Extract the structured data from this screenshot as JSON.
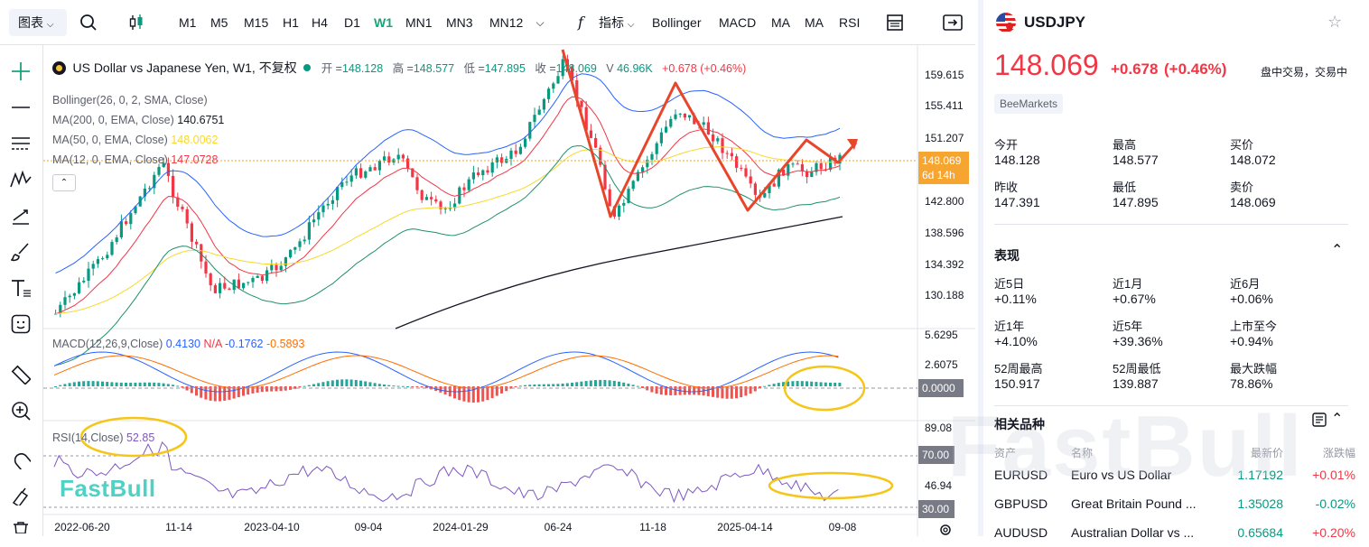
{
  "toolbar": {
    "chart_type": "图表",
    "intervals": [
      "M1",
      "M5",
      "M15",
      "H1",
      "H4",
      "D1",
      "W1",
      "MN1",
      "MN3",
      "MN12"
    ],
    "active_interval": "W1",
    "indicators_label": "指标",
    "indicator_buttons": [
      "Bollinger",
      "MACD",
      "MA",
      "MA",
      "RSI"
    ]
  },
  "chart": {
    "title": "US Dollar vs Japanese Yen, W1, 不复权",
    "open_label": "开 =",
    "open": "148.128",
    "high_label": "高 =",
    "high": "148.577",
    "low_label": "低 =",
    "low": "147.895",
    "close_label": "收 =",
    "close": "148.069",
    "vol_label": "V",
    "vol": "46.96K",
    "change": "+0.678",
    "change_pct": "(+0.46%)",
    "studies": [
      {
        "name": "Bollinger(26, 0, 2, SMA, Close)",
        "value": ""
      },
      {
        "name": "MA(200, 0, EMA, Close)",
        "value": "140.6751",
        "color": "#131722"
      },
      {
        "name": "MA(50, 0, EMA, Close)",
        "value": "148.0062",
        "color": "#f7d92a"
      },
      {
        "name": "MA(12, 0, EMA, Close)",
        "value": "147.0728",
        "color": "#f23645"
      }
    ],
    "price_ticks": [
      "159.615",
      "155.411",
      "151.207",
      "142.800",
      "138.596",
      "134.392",
      "130.188"
    ],
    "price_tag": "148.069",
    "price_tag_countdown": "6d 14h",
    "macd": {
      "name": "MACD(12,26,9,Close)",
      "v1": "0.4130",
      "v2": "N/A",
      "v3": "-0.1762",
      "v4": "-0.5893",
      "ticks": [
        "5.6295",
        "2.6075"
      ],
      "zero_tag": "0.0000"
    },
    "rsi": {
      "name": "RSI(14,Close)",
      "value": "52.85",
      "ticks": [
        "89.08",
        "46.94"
      ],
      "tag70": "70.00",
      "tag30": "30.00"
    },
    "time_ticks": [
      "2022-06-20",
      "11-14",
      "2023-04-10",
      "09-04",
      "2024-01-29",
      "06-24",
      "11-18",
      "2025-04-14",
      "09-08"
    ],
    "watermark": "FastBull",
    "watermark_big": "FastBull"
  },
  "panel": {
    "symbol": "USDJPY",
    "price": "148.069",
    "change": "+0.678",
    "change_pct": "(+0.46%)",
    "status": "盘中交易，交易中",
    "broker": "BeeMarkets",
    "stats": [
      {
        "label": "今开",
        "value": "148.128"
      },
      {
        "label": "最高",
        "value": "148.577"
      },
      {
        "label": "买价",
        "value": "148.072"
      },
      {
        "label": "昨收",
        "value": "147.391"
      },
      {
        "label": "最低",
        "value": "147.895"
      },
      {
        "label": "卖价",
        "value": "148.069"
      }
    ],
    "perf_title": "表现",
    "perf": [
      {
        "label": "近5日",
        "value": "+0.11%"
      },
      {
        "label": "近1月",
        "value": "+0.67%"
      },
      {
        "label": "近6月",
        "value": "+0.06%"
      },
      {
        "label": "近1年",
        "value": "+4.10%"
      },
      {
        "label": "近5年",
        "value": "+39.36%"
      },
      {
        "label": "上市至今",
        "value": "+0.94%"
      },
      {
        "label": "52周最高",
        "value": "150.917"
      },
      {
        "label": "52周最低",
        "value": "139.887"
      },
      {
        "label": "最大跌幅",
        "value": "78.86%"
      }
    ],
    "related_title": "相关品种",
    "related_headers": [
      "资产",
      "名称",
      "最新价",
      "涨跌幅"
    ],
    "related": [
      {
        "asset": "EURUSD",
        "name": "Euro vs US Dollar",
        "price": "1.17192",
        "change": "+0.01%"
      },
      {
        "asset": "GBPUSD",
        "name": "Great Britain Pound ...",
        "price": "1.35028",
        "change": "-0.02%"
      },
      {
        "asset": "AUDUSD",
        "name": "Australian Dollar vs ...",
        "price": "0.65684",
        "change": "+0.20%"
      }
    ]
  }
}
